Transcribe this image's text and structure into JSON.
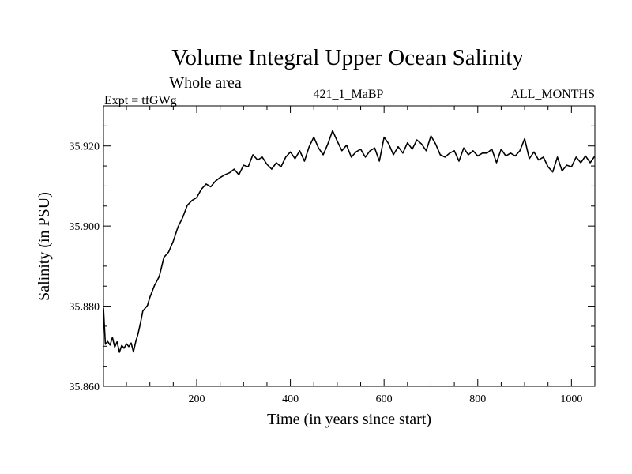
{
  "chart_data": {
    "type": "line",
    "title": "Volume Integral Upper Ocean Salinity",
    "subtitle": "Whole area",
    "left_label": "Expt = tfGWg",
    "center_label": "421_1_MaBP",
    "right_label": "ALL_MONTHS",
    "xlabel": "Time (in years since start)",
    "ylabel": "Salinity (in PSU)",
    "xlim": [
      1,
      1050
    ],
    "ylim": [
      35.86,
      35.93
    ],
    "xticks": [
      200,
      400,
      600,
      800,
      1000
    ],
    "xtick_labels": [
      "200",
      "400",
      "600",
      "800",
      "1000"
    ],
    "yticks": [
      35.86,
      35.88,
      35.9,
      35.92
    ],
    "ytick_labels": [
      "35.860",
      "35.880",
      "35.900",
      "35.920"
    ],
    "series": [
      {
        "name": "salinity",
        "color": "#000000",
        "x": [
          1,
          5,
          10,
          15,
          20,
          25,
          30,
          35,
          40,
          45,
          50,
          55,
          60,
          65,
          70,
          75,
          80,
          85,
          90,
          95,
          100,
          110,
          120,
          130,
          140,
          150,
          160,
          170,
          180,
          190,
          200,
          210,
          220,
          230,
          240,
          250,
          260,
          270,
          280,
          290,
          300,
          310,
          320,
          330,
          340,
          350,
          360,
          370,
          380,
          390,
          400,
          410,
          420,
          430,
          440,
          450,
          460,
          470,
          480,
          490,
          500,
          510,
          520,
          530,
          540,
          550,
          560,
          570,
          580,
          590,
          600,
          610,
          620,
          630,
          640,
          650,
          660,
          670,
          680,
          690,
          700,
          710,
          720,
          730,
          740,
          750,
          760,
          770,
          780,
          790,
          800,
          810,
          820,
          830,
          840,
          850,
          860,
          870,
          880,
          890,
          900,
          910,
          920,
          930,
          940,
          950,
          960,
          970,
          980,
          990,
          1000,
          1010,
          1020,
          1030,
          1040,
          1050
        ],
        "values": [
          35.8795,
          35.8705,
          35.8712,
          35.8703,
          35.8722,
          35.8698,
          35.8711,
          35.8685,
          35.8702,
          35.8695,
          35.8706,
          35.8699,
          35.8708,
          35.8686,
          35.8712,
          35.8732,
          35.8758,
          35.8788,
          35.8795,
          35.8802,
          35.8822,
          35.8852,
          35.8874,
          35.8922,
          35.8935,
          35.8962,
          35.8998,
          35.9021,
          35.9052,
          35.9064,
          35.9071,
          35.9092,
          35.9105,
          35.9098,
          35.9112,
          35.9121,
          35.9128,
          35.9133,
          35.9142,
          35.9128,
          35.9152,
          35.9148,
          35.9178,
          35.9165,
          35.9172,
          35.9154,
          35.9142,
          35.9158,
          35.9148,
          35.9172,
          35.9185,
          35.9168,
          35.9188,
          35.9162,
          35.9198,
          35.9222,
          35.9195,
          35.9178,
          35.9205,
          35.9238,
          35.9212,
          35.9188,
          35.9202,
          35.9172,
          35.9185,
          35.9192,
          35.9172,
          35.9188,
          35.9195,
          35.9162,
          35.9222,
          35.9205,
          35.9178,
          35.9198,
          35.9182,
          35.9208,
          35.9192,
          35.9215,
          35.9205,
          35.9188,
          35.9225,
          35.9205,
          35.9178,
          35.9172,
          35.9182,
          35.9188,
          35.9162,
          35.9195,
          35.9178,
          35.9188,
          35.9175,
          35.9182,
          35.9182,
          35.9192,
          35.9158,
          35.9192,
          35.9175,
          35.9182,
          35.9175,
          35.9188,
          35.9218,
          35.9168,
          35.9185,
          35.9165,
          35.9172,
          35.9148,
          35.9135,
          35.9172,
          35.9138,
          35.9152,
          35.9148,
          35.9172,
          35.9158,
          35.9175,
          35.9158,
          35.9175
        ]
      }
    ]
  }
}
